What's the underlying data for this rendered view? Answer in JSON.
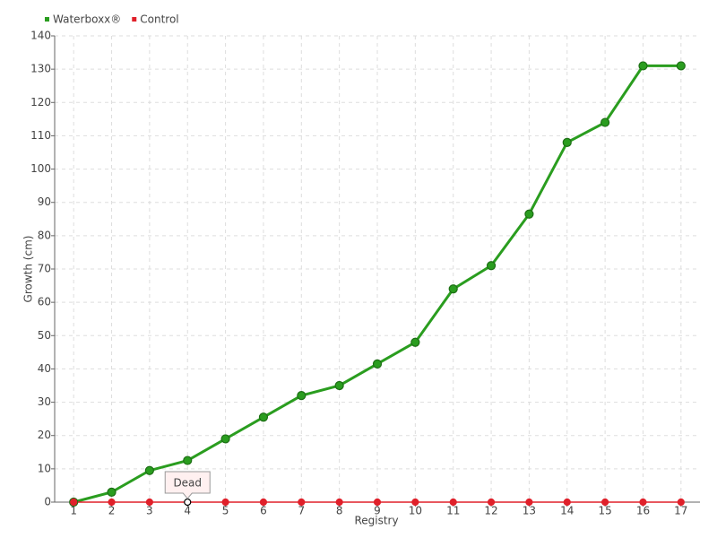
{
  "chart_data": {
    "type": "line",
    "x_label": "Registry",
    "y_label": "Growth (cm)",
    "categories": [
      "1",
      "2",
      "3",
      "4",
      "5",
      "6",
      "7",
      "8",
      "9",
      "10",
      "11",
      "12",
      "13",
      "14",
      "15",
      "16",
      "17"
    ],
    "series": [
      {
        "name": "Waterboxx®",
        "color": "#2a9d1f",
        "values": [
          0,
          3,
          9.5,
          12.5,
          19,
          25.5,
          32,
          35,
          41.5,
          48,
          64,
          71,
          86.5,
          108,
          114,
          131,
          131
        ]
      },
      {
        "name": "Control",
        "color": "#e0202a",
        "values": [
          0,
          0,
          0,
          0,
          0,
          0,
          0,
          0,
          0,
          0,
          0,
          0,
          0,
          0,
          0,
          0,
          0
        ]
      }
    ],
    "annotations": [
      {
        "text": "Dead",
        "x": "4",
        "series": "Control"
      }
    ],
    "ylim": [
      0,
      140
    ],
    "yticks": [
      0,
      10,
      20,
      30,
      40,
      50,
      60,
      70,
      80,
      90,
      100,
      110,
      120,
      130,
      140
    ],
    "grid": true,
    "legend": "top-left"
  }
}
